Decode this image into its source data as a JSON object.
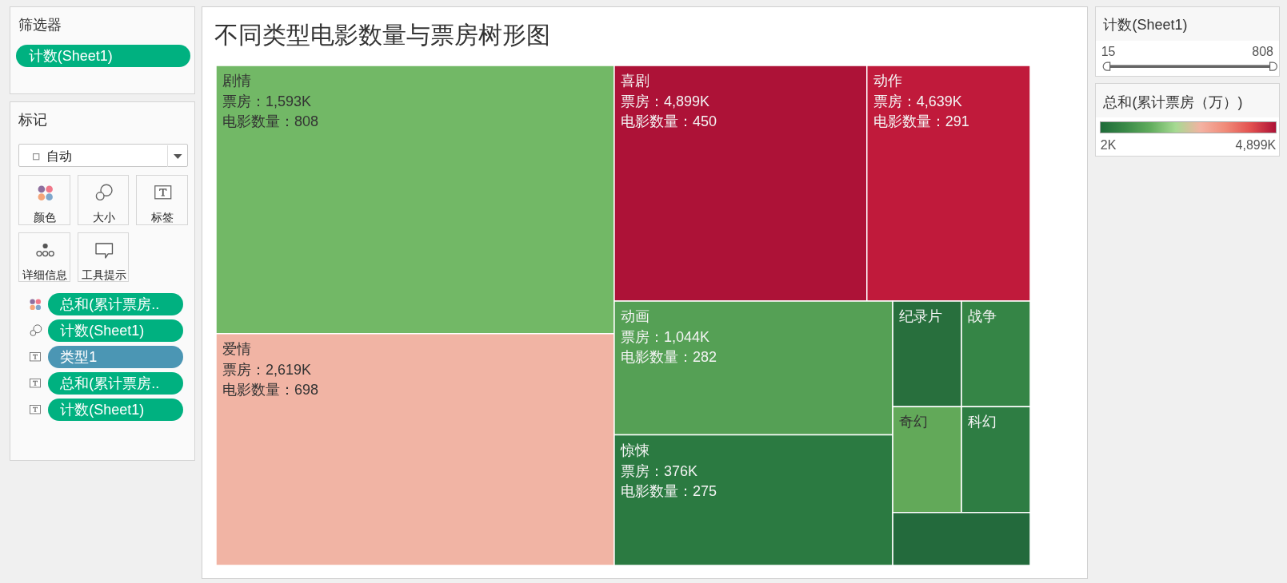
{
  "chart_data": [
    {
      "type": "other",
      "title": "筛选器",
      "annotations": [
        "计数(Sheet1)"
      ]
    },
    {
      "type": "other",
      "title": "标记",
      "annotations": [
        "自动",
        "颜色",
        "大小",
        "标签",
        "详细信息",
        "工具提示",
        "总和(累计票房..",
        "计数(Sheet1)",
        "类型1",
        "总和(累计票房..",
        "计数(Sheet1)"
      ]
    },
    {
      "type": "other",
      "title": "不同类型电影数量与票房树形图",
      "categories": [
        "剧情",
        "爱情",
        "喜剧",
        "动作",
        "动画",
        "惊悚",
        "纪录片",
        "战争",
        "奇幻",
        "科幻",
        null
      ],
      "values": [
        808,
        698,
        450,
        291,
        282,
        275,
        null,
        null,
        null,
        null,
        null
      ],
      "colors": [
        "#72b866",
        "#f1b4a4",
        "#ad1237",
        "#c01a3b",
        "#55a055",
        "#2b7a41",
        "#286f3d",
        "#358546",
        "#62a959",
        "#2e7d43",
        "#236a3c"
      ],
      "value_labels": [
        "票房：1,593K\n电影数量：808",
        "票房：2,619K\n电影数量：698",
        "票房：4,899K\n电影数量：450",
        "票房：4,639K\n电影数量：291",
        "票房：1,044K\n电影数量：282",
        "票房：376K\n电影数量：275",
        null,
        null,
        null,
        null,
        null
      ]
    },
    {
      "type": "other",
      "title": "计数(Sheet1)",
      "annotations": [
        "15",
        "808"
      ]
    },
    {
      "type": "other",
      "title": "总和(累计票房（万）)",
      "annotations": [
        "2K",
        "4,899K"
      ],
      "colors": [
        "#1f6b39",
        "#3a8a48",
        "#62ad5e",
        "#a6da92",
        "#f4b2a2",
        "#f08a78",
        "#e2504f",
        "#ad1237"
      ]
    }
  ]
}
